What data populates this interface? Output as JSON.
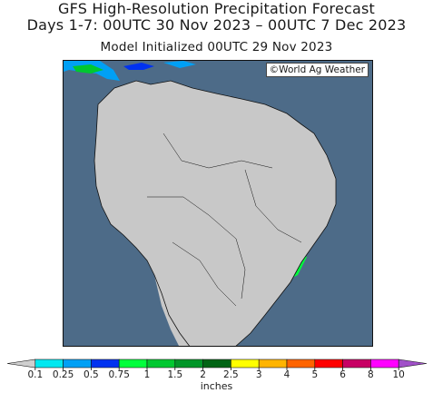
{
  "title": {
    "line1": "GFS High-Resolution Precipitation Forecast",
    "line2": "Days 1-7: 00UTC 30 Nov 2023 – 00UTC 7 Dec 2023",
    "line3": "Model Initialized 00UTC 29 Nov 2023"
  },
  "map": {
    "credit": "©World Ag Weather",
    "ocean_color": "#4d6b88",
    "land_dry_color": "#c8c8c8",
    "region": "South America"
  },
  "legend": {
    "units": "inches",
    "ticks": [
      "0.1",
      "0.25",
      "0.5",
      "0.75",
      "1",
      "1.5",
      "2",
      "2.5",
      "3",
      "4",
      "5",
      "6",
      "8",
      "10"
    ],
    "colors": [
      "#cfcfcf",
      "#00e8f0",
      "#00a0f5",
      "#0032f0",
      "#00ff3c",
      "#00c830",
      "#009628",
      "#006414",
      "#ffff00",
      "#ffb400",
      "#ff6400",
      "#ff0000",
      "#c80064",
      "#ff00ff",
      "#a050c8"
    ]
  }
}
